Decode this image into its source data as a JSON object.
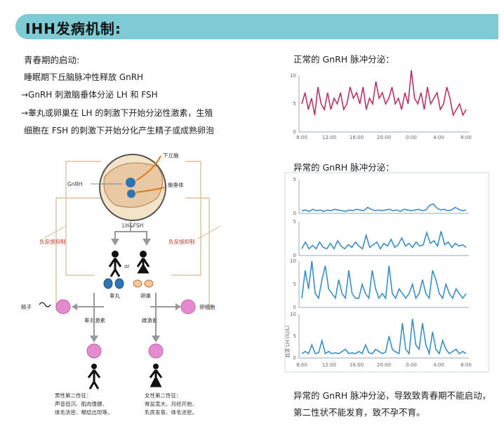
{
  "header": {
    "title": "IHH发病机制:"
  },
  "left_text": {
    "heading": "青春期的启动:",
    "line1": "睡眠期下丘脑脉冲性释放 GnRH",
    "line2": "→GnRH 刺激脑垂体分泌 LH 和 FSH",
    "line3": "→睾丸或卵巢在 LH 的刺激下开始分泌性激素，生殖",
    "line4": "细胞在 FSH 的刺激下开始分化产生精子或成熟卵泡"
  },
  "diagram": {
    "hypothalamus": "下丘脑",
    "gnrh": "GnRH",
    "pituitary": "脑垂体",
    "lhfsh": "LH&FSH",
    "feedback_left": "负反馈抑制",
    "feedback_right": "负反馈抑制",
    "or": "or",
    "testis": "睾丸",
    "ovary": "卵巢",
    "sperm": "精子",
    "egg": "卵细胞",
    "testosterone": "睾丸激素",
    "estrogen": "雌激素",
    "male_traits_title": "男性第二性征：",
    "male_traits_1": "声音低沉、肌肉强健、",
    "male_traits_2": "体毛浓密、喉结出现等。",
    "female_traits_title": "女性第二性征：",
    "female_traits_1": "骨盆宽大、月经开始、",
    "female_traits_2": "乳房发育、体毛浓密。"
  },
  "right": {
    "normal_title": "正常的 GnRH 脉冲分泌：",
    "abnormal_title": "异常的 GnRH 脉冲分泌：",
    "y_axis_label": "血清 LH (IU/L)",
    "conclusion": "异常的 GnRH 脉冲分泌，导致致青春期不能启动，第二性状不能发育，致不孕不育。"
  },
  "chart_data": [
    {
      "type": "line",
      "title": "正常的 GnRH 脉冲分泌：",
      "x_ticks": [
        "8:00",
        "12:00",
        "16:00",
        "20:00",
        "0:00",
        "4:00",
        "8:00"
      ],
      "ylim": [
        0,
        10
      ],
      "y_ticks": [
        "10",
        "5",
        "0"
      ],
      "color": "#b5336a",
      "series": [
        {
          "values": [
            5,
            7,
            4,
            6,
            3,
            8,
            5,
            4,
            7,
            4,
            6,
            5,
            7,
            4,
            5,
            8,
            6,
            7,
            5,
            8,
            4,
            6,
            5,
            9,
            6,
            7,
            5,
            6,
            8,
            5,
            6,
            4,
            7,
            5,
            11,
            6,
            5,
            7,
            4,
            8,
            5,
            6,
            7,
            4,
            5,
            8,
            6,
            3,
            4,
            5,
            3,
            4
          ]
        }
      ]
    },
    {
      "type": "line",
      "title": "异常的 GnRH 脉冲分泌：",
      "ylim": [
        0,
        5
      ],
      "y_ticks": [
        "5",
        "0"
      ],
      "color": "#3a8fc0",
      "series": [
        {
          "values": [
            0.4,
            0.5,
            0.3,
            0.6,
            0.4,
            0.5,
            0.3,
            0.5,
            0.4,
            0.6,
            0.5,
            0.4,
            0.3,
            0.5,
            0.4,
            0.6,
            0.5,
            0.4,
            0.9,
            0.6,
            0.4,
            0.5,
            0.4,
            0.5,
            0.6,
            0.4,
            0.5,
            0.3,
            0.6,
            0.5,
            0.4,
            0.5,
            0.6,
            0.4,
            0.5,
            1.2,
            1.4,
            0.8,
            0.5,
            0.6,
            0.4,
            0.5,
            0.9,
            0.6,
            0.4,
            0.5
          ]
        }
      ]
    },
    {
      "type": "line",
      "ylim": [
        0,
        5
      ],
      "y_ticks": [
        "5",
        "0"
      ],
      "color": "#3a8fc0",
      "series": [
        {
          "values": [
            1,
            2,
            1,
            1.5,
            1,
            2,
            1.2,
            1,
            1.8,
            1,
            2.2,
            1.4,
            1,
            1.6,
            1.2,
            2,
            1.4,
            1,
            3,
            1.2,
            1.6,
            2,
            1,
            1.8,
            1.4,
            2.4,
            1.2,
            1.6,
            2.6,
            1.4,
            1.8,
            1.2,
            2,
            1.4,
            1.6,
            3.4,
            1.8,
            2.2,
            1.4,
            3.6,
            1.6,
            2,
            1.2,
            1.8,
            1.4,
            1.6,
            1.2
          ]
        }
      ]
    },
    {
      "type": "line",
      "ylim": [
        0,
        10
      ],
      "y_ticks": [
        "10",
        "5",
        "0"
      ],
      "color": "#3a8fc0",
      "series": [
        {
          "values": [
            2,
            8,
            4,
            10,
            3,
            2,
            6,
            9,
            4,
            3,
            2,
            6,
            3,
            2,
            8,
            3,
            2,
            2,
            5,
            3,
            2,
            8,
            4,
            2,
            3,
            2,
            9,
            3,
            2,
            4,
            3,
            2,
            3,
            5,
            2,
            3,
            6,
            3,
            2,
            8,
            6,
            3,
            2,
            5,
            3,
            2,
            4,
            3,
            2,
            3
          ]
        }
      ]
    },
    {
      "type": "line",
      "x_ticks": [
        "8:00",
        "12:00",
        "16:00",
        "20:00",
        "0:00",
        "4:00",
        "8:00"
      ],
      "ylim": [
        0,
        10
      ],
      "y_ticks": [
        "10",
        "5",
        "0"
      ],
      "ylabel": "血清 LH (IU/L)",
      "color": "#3a8fc0",
      "series": [
        {
          "values": [
            1,
            1.5,
            1,
            3,
            1,
            1.2,
            4,
            1,
            1.5,
            1,
            1.2,
            1,
            1.5,
            2,
            1,
            1.2,
            1,
            1.5,
            1,
            3,
            1.2,
            1,
            2,
            1.5,
            1,
            1.4,
            5,
            2,
            1.4,
            1,
            8,
            2,
            1,
            9,
            3,
            2,
            8,
            3,
            1,
            6,
            2,
            1,
            4,
            2,
            1,
            1.5,
            2,
            1,
            1.5,
            1
          ]
        }
      ]
    }
  ]
}
